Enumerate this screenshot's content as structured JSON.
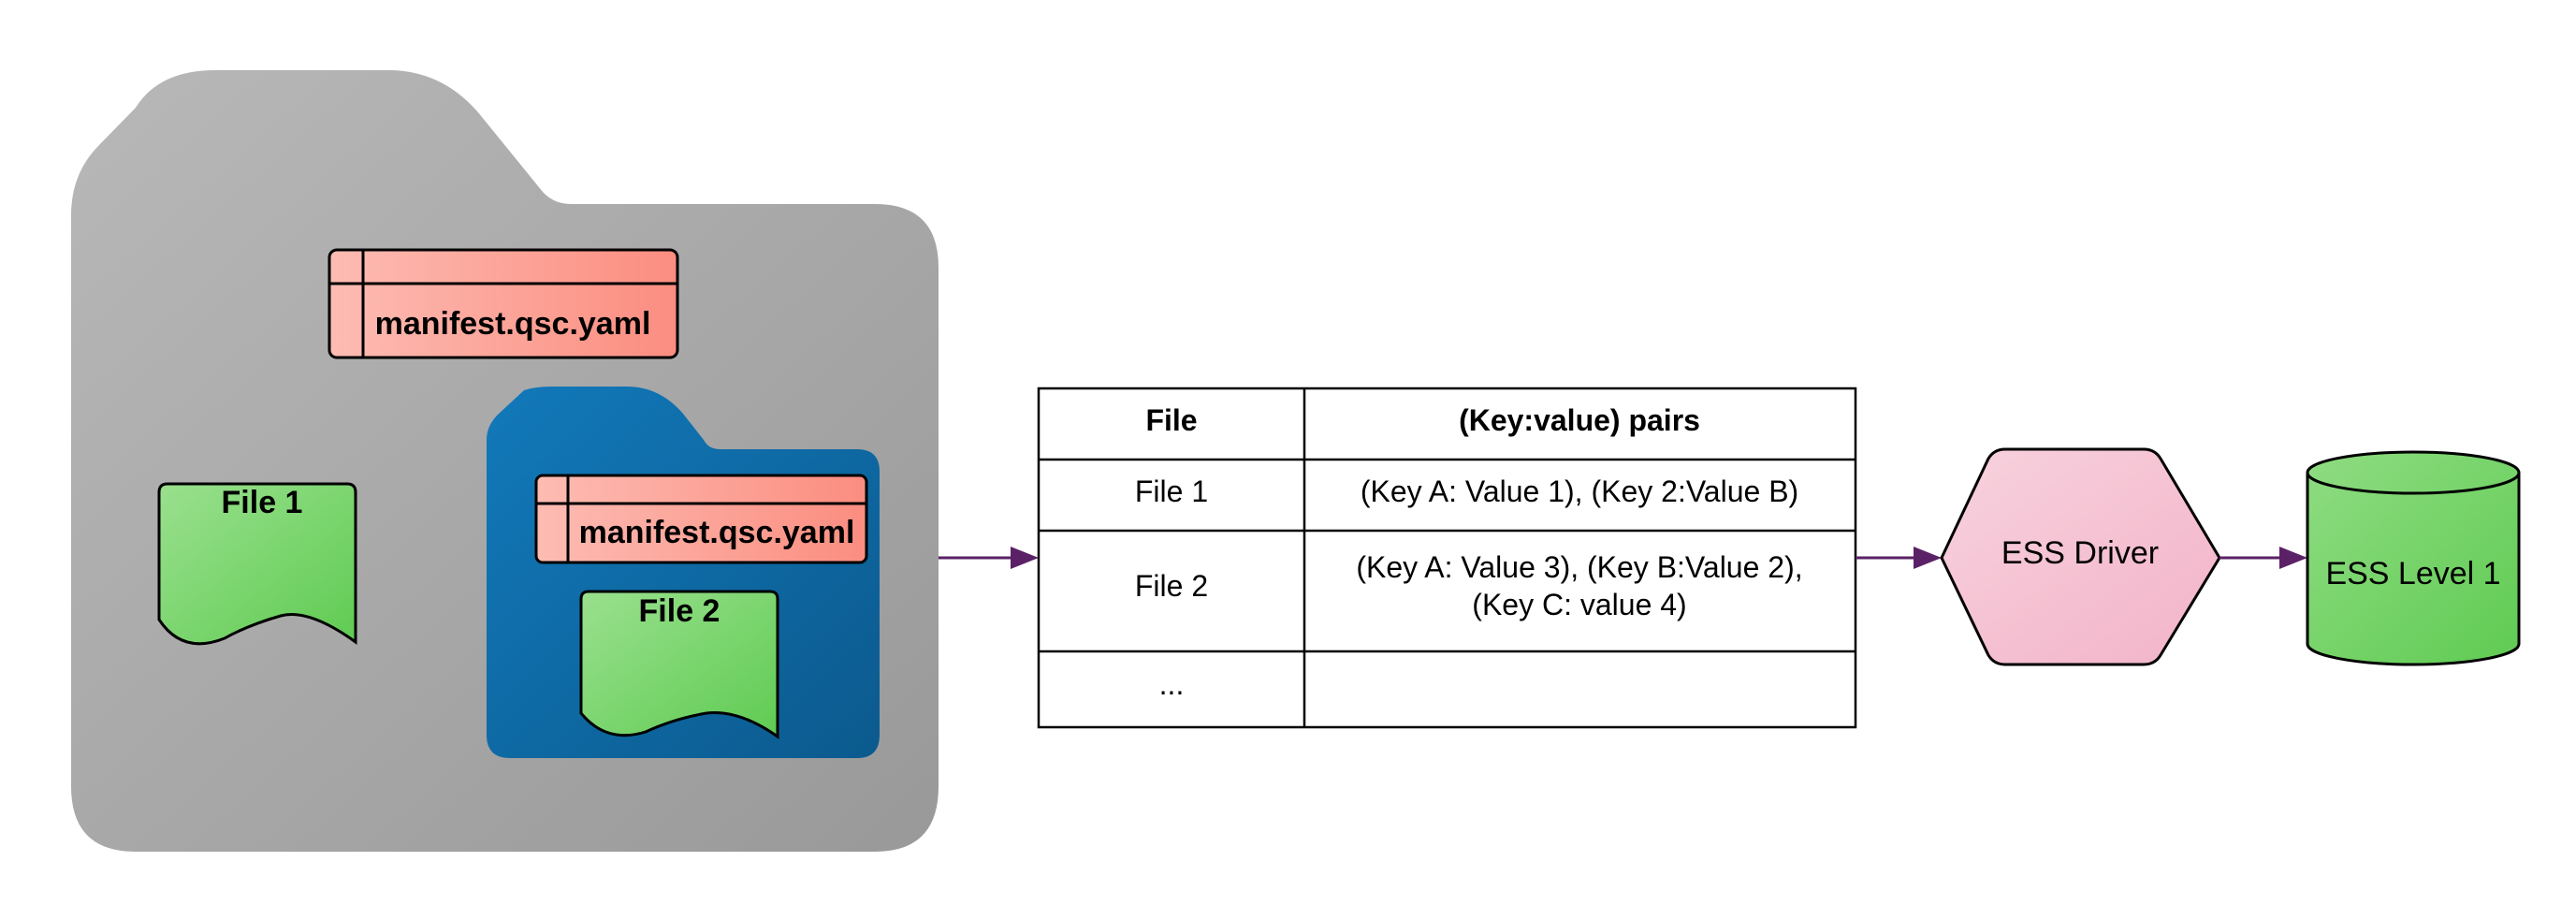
{
  "outer_folder": {
    "manifest": {
      "label": "manifest.qsc.yaml"
    },
    "file1": {
      "label": "File 1"
    },
    "inner_folder": {
      "manifest": {
        "label": "manifest.qsc.yaml"
      },
      "file2": {
        "label": "File 2"
      }
    }
  },
  "mapping_table": {
    "headers": [
      "File",
      "(Key:value) pairs"
    ],
    "rows": [
      {
        "file": "File 1",
        "pairs": [
          "(Key A: Value 1), (Key 2:Value B)"
        ]
      },
      {
        "file": "File 2",
        "pairs": [
          "(Key A: Value 3), (Key B:Value 2),",
          "(Key C: value 4)"
        ]
      },
      {
        "file": "...",
        "pairs": []
      }
    ]
  },
  "driver": {
    "label": "ESS Driver"
  },
  "storage": {
    "label": "ESS Level 1"
  },
  "colors": {
    "outer_folder": "#a8a8a8",
    "inner_folder": "#0d6aa6",
    "manifest": "#fc9c91",
    "file_doc": "#79d66b",
    "driver": "#f4bcd0",
    "storage": "#79d66b",
    "arrow": "#5b2166"
  }
}
